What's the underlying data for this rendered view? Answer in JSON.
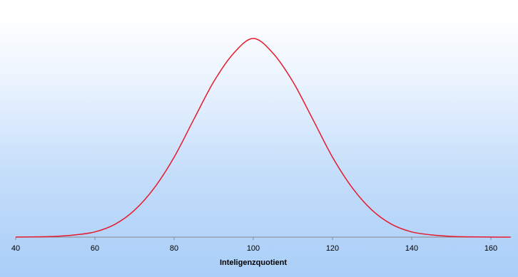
{
  "chart_data": {
    "type": "line",
    "title": "",
    "xlabel": "Inteligenzquotient",
    "ylabel": "",
    "xlim": [
      40,
      165
    ],
    "ylim": [
      0,
      0.0266
    ],
    "x_ticks": [
      40,
      60,
      80,
      100,
      120,
      140,
      160
    ],
    "grid": false,
    "legend": "none",
    "line_color": "#e8192c",
    "axis_color": "#888888",
    "series": [
      {
        "x": [
          40,
          45,
          50,
          55,
          60,
          65,
          70,
          75,
          80,
          85,
          90,
          95,
          100,
          105,
          110,
          115,
          120,
          125,
          130,
          135,
          140,
          145,
          150,
          155,
          160,
          165
        ],
        "values": [
          1e-05,
          4e-05,
          0.0001,
          0.0003,
          0.0007,
          0.0017,
          0.0036,
          0.0066,
          0.0107,
          0.0158,
          0.0208,
          0.0246,
          0.0266,
          0.0246,
          0.0208,
          0.0158,
          0.0107,
          0.0066,
          0.0036,
          0.0017,
          0.0007,
          0.0003,
          0.0001,
          4e-05,
          1e-05,
          3e-06
        ]
      }
    ]
  }
}
